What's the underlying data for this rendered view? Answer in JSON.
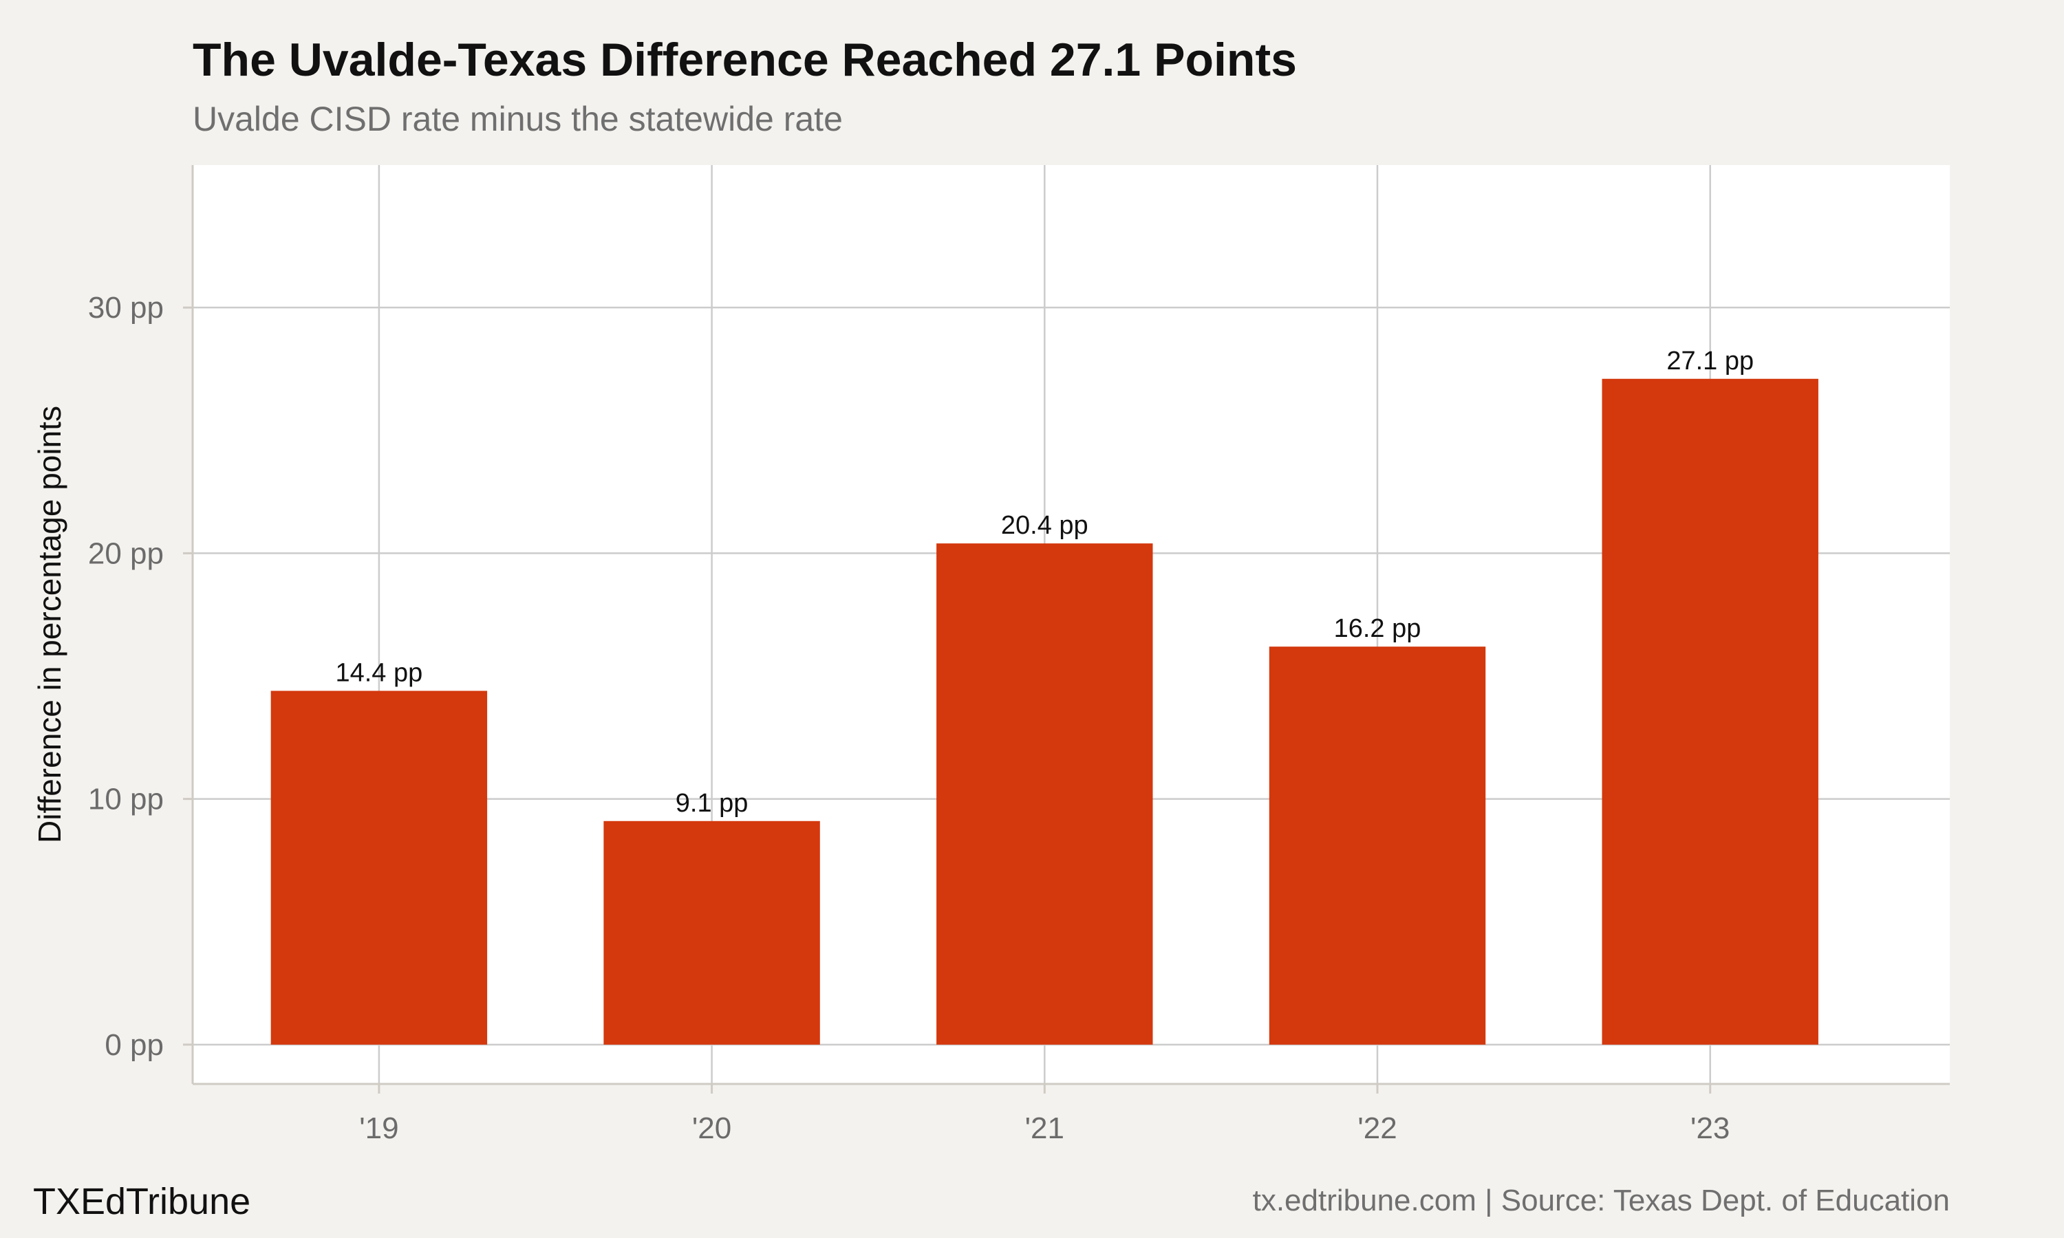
{
  "chart_data": {
    "type": "bar",
    "title": "The Uvalde-Texas Difference Reached 27.1 Points",
    "subtitle": "Uvalde CISD rate minus the statewide rate",
    "ylabel": "Difference in percentage points",
    "xlabel": "",
    "categories": [
      "'19",
      "'20",
      "'21",
      "'22",
      "'23"
    ],
    "values": [
      14.4,
      9.1,
      20.4,
      16.2,
      27.1
    ],
    "data_labels": [
      "14.4 pp",
      "9.1 pp",
      "20.4 pp",
      "16.2 pp",
      "27.1 pp"
    ],
    "yticks": [
      0,
      10,
      20,
      30
    ],
    "ytick_labels": [
      "0 pp",
      "10 pp",
      "20 pp",
      "30 pp"
    ],
    "ylim": [
      -1.6,
      35.8
    ],
    "grid": true,
    "legend": false,
    "colors": {
      "bar": "#d4380d",
      "panel": "#ffffff",
      "background": "#f4f2ee",
      "grid": "#cccccc"
    }
  },
  "footer": {
    "brand": "TXEdTribune",
    "source": "tx.edtribune.com | Source: Texas Dept. of Education"
  }
}
